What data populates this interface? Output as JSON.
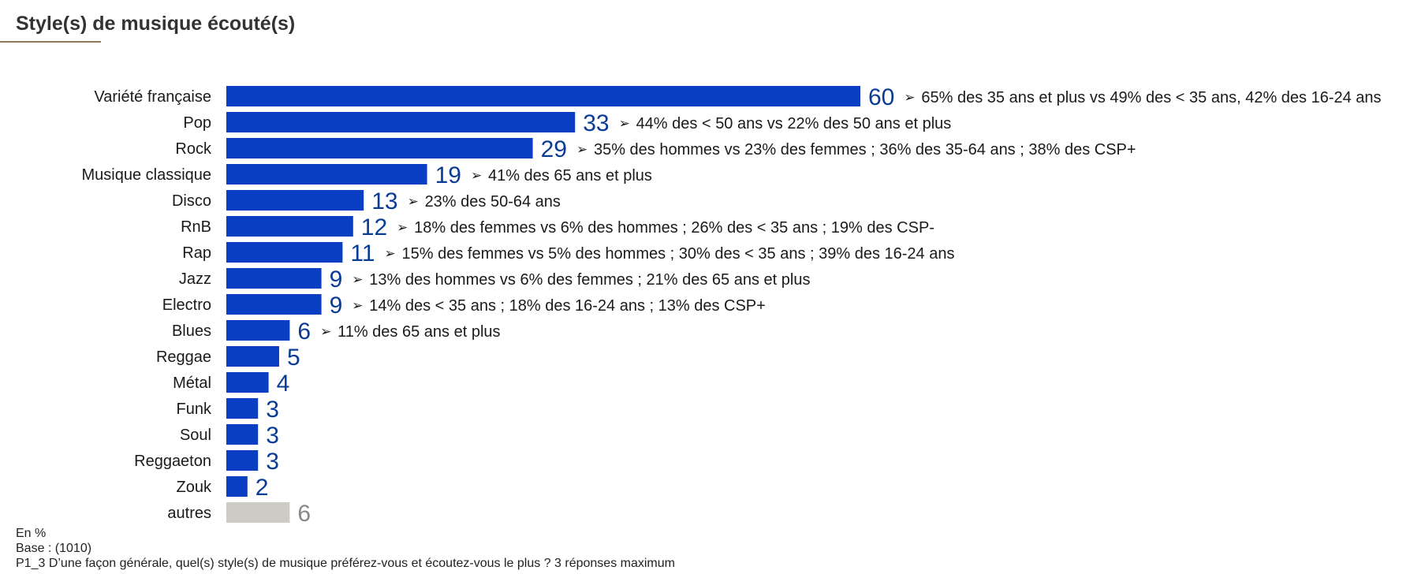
{
  "chart_data": {
    "type": "bar",
    "orientation": "horizontal",
    "title": "Style(s) de musique écouté(s)",
    "categories": [
      "Variété française",
      "Pop",
      "Rock",
      "Musique classique",
      "Disco",
      "RnB",
      "Rap",
      "Jazz",
      "Electro",
      "Blues",
      "Reggae",
      "Métal",
      "Funk",
      "Soul",
      "Reggaeton",
      "Zouk",
      "autres"
    ],
    "values": [
      60,
      33,
      29,
      19,
      13,
      12,
      11,
      9,
      9,
      6,
      5,
      4,
      3,
      3,
      3,
      2,
      6
    ],
    "annotations": [
      "65% des 35 ans et plus vs 49% des < 35 ans, 42% des 16-24 ans",
      "44% des < 50 ans vs 22% des 50 ans et plus",
      "35% des hommes vs 23% des femmes ; 36% des 35-64 ans ; 38% des CSP+",
      "41% des 65 ans et plus",
      "23% des 50-64 ans",
      "18% des femmes vs 6% des hommes ; 26% des < 35 ans ; 19% des CSP-",
      "15% des femmes vs 5% des hommes ; 30% des < 35 ans ; 39% des 16-24 ans",
      "13% des hommes vs 6% des femmes ; 21% des 65 ans et plus",
      "14% des < 35 ans ; 18% des 16-24 ans ; 13% des CSP+",
      "11% des 65 ans et plus",
      "",
      "",
      "",
      "",
      "",
      "",
      ""
    ],
    "xlim": [
      0,
      60
    ],
    "grid": false,
    "legend": "none",
    "colors": {
      "bar": "#0a3fc4",
      "other_bar": "#cccbc5",
      "value_label": "#0a3c96",
      "other_value_label": "#888888"
    }
  },
  "footer": {
    "unit": "En %",
    "base": "Base : (1010)",
    "question": "P1_3 D’une façon générale, quel(s) style(s) de musique préférez-vous et écoutez-vous le plus ? 3 réponses maximum"
  },
  "icons": {
    "annotation_marker": "arrow-bullet-icon",
    "glyph": "➢"
  }
}
